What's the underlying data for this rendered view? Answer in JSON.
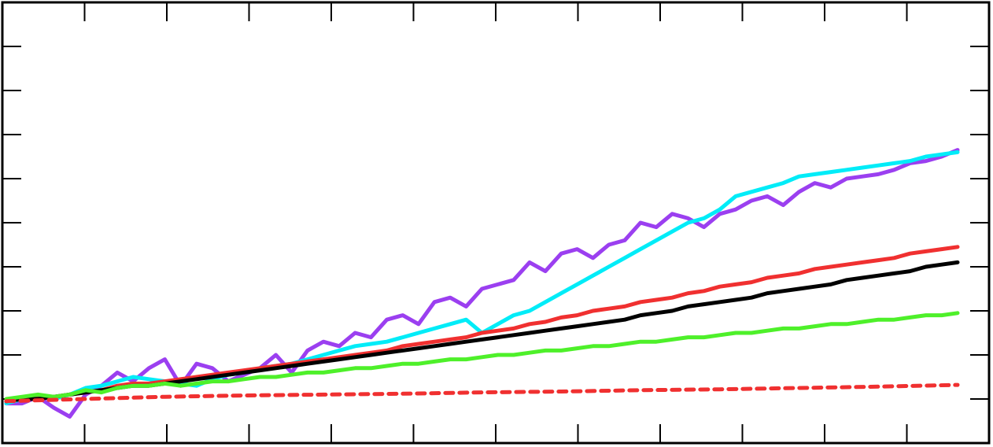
{
  "chart_data": {
    "type": "line",
    "title": "",
    "xlabel": "",
    "ylabel": "",
    "xlim": [
      0,
      60
    ],
    "ylim": [
      -1,
      9
    ],
    "grid": false,
    "x_ticks": [
      0,
      5,
      10,
      15,
      20,
      25,
      30,
      35,
      40,
      45,
      50,
      55,
      60
    ],
    "y_ticks": [
      0,
      1,
      2,
      3,
      4,
      5,
      6,
      7,
      8,
      9
    ],
    "series": [
      {
        "color": "#9b3ff0",
        "dashed": false,
        "values": [
          [
            0,
            -0.1
          ],
          [
            1,
            -0.1
          ],
          [
            2,
            0.05
          ],
          [
            3,
            -0.2
          ],
          [
            4,
            -0.4
          ],
          [
            5,
            0.1
          ],
          [
            6,
            0.3
          ],
          [
            7,
            0.6
          ],
          [
            8,
            0.4
          ],
          [
            9,
            0.7
          ],
          [
            10,
            0.9
          ],
          [
            11,
            0.3
          ],
          [
            12,
            0.8
          ],
          [
            13,
            0.7
          ],
          [
            14,
            0.4
          ],
          [
            15,
            0.55
          ],
          [
            16,
            0.7
          ],
          [
            17,
            1.0
          ],
          [
            18,
            0.6
          ],
          [
            19,
            1.1
          ],
          [
            20,
            1.3
          ],
          [
            21,
            1.2
          ],
          [
            22,
            1.5
          ],
          [
            23,
            1.4
          ],
          [
            24,
            1.8
          ],
          [
            25,
            1.9
          ],
          [
            26,
            1.7
          ],
          [
            27,
            2.2
          ],
          [
            28,
            2.3
          ],
          [
            29,
            2.1
          ],
          [
            30,
            2.5
          ],
          [
            31,
            2.6
          ],
          [
            32,
            2.7
          ],
          [
            33,
            3.1
          ],
          [
            34,
            2.9
          ],
          [
            35,
            3.3
          ],
          [
            36,
            3.4
          ],
          [
            37,
            3.2
          ],
          [
            38,
            3.5
          ],
          [
            39,
            3.6
          ],
          [
            40,
            4.0
          ],
          [
            41,
            3.9
          ],
          [
            42,
            4.2
          ],
          [
            43,
            4.1
          ],
          [
            44,
            3.9
          ],
          [
            45,
            4.2
          ],
          [
            46,
            4.3
          ],
          [
            47,
            4.5
          ],
          [
            48,
            4.6
          ],
          [
            49,
            4.4
          ],
          [
            50,
            4.7
          ],
          [
            51,
            4.9
          ],
          [
            52,
            4.8
          ],
          [
            53,
            5.0
          ],
          [
            54,
            5.05
          ],
          [
            55,
            5.1
          ],
          [
            56,
            5.2
          ],
          [
            57,
            5.35
          ],
          [
            58,
            5.4
          ],
          [
            59,
            5.5
          ],
          [
            60,
            5.65
          ]
        ]
      },
      {
        "color": "#00ecf8",
        "dashed": false,
        "values": [
          [
            0,
            -0.1
          ],
          [
            1,
            0.0
          ],
          [
            2,
            0.05
          ],
          [
            3,
            0.0
          ],
          [
            4,
            0.1
          ],
          [
            5,
            0.25
          ],
          [
            6,
            0.3
          ],
          [
            7,
            0.4
          ],
          [
            8,
            0.5
          ],
          [
            9,
            0.45
          ],
          [
            10,
            0.4
          ],
          [
            11,
            0.35
          ],
          [
            12,
            0.3
          ],
          [
            13,
            0.45
          ],
          [
            14,
            0.55
          ],
          [
            15,
            0.6
          ],
          [
            16,
            0.7
          ],
          [
            17,
            0.75
          ],
          [
            18,
            0.8
          ],
          [
            19,
            0.9
          ],
          [
            20,
            1.0
          ],
          [
            21,
            1.1
          ],
          [
            22,
            1.2
          ],
          [
            23,
            1.25
          ],
          [
            24,
            1.3
          ],
          [
            25,
            1.4
          ],
          [
            26,
            1.5
          ],
          [
            27,
            1.6
          ],
          [
            28,
            1.7
          ],
          [
            29,
            1.8
          ],
          [
            30,
            1.5
          ],
          [
            31,
            1.7
          ],
          [
            32,
            1.9
          ],
          [
            33,
            2.0
          ],
          [
            34,
            2.2
          ],
          [
            35,
            2.4
          ],
          [
            36,
            2.6
          ],
          [
            37,
            2.8
          ],
          [
            38,
            3.0
          ],
          [
            39,
            3.2
          ],
          [
            40,
            3.4
          ],
          [
            41,
            3.6
          ],
          [
            42,
            3.8
          ],
          [
            43,
            4.0
          ],
          [
            44,
            4.1
          ],
          [
            45,
            4.3
          ],
          [
            46,
            4.6
          ],
          [
            47,
            4.7
          ],
          [
            48,
            4.8
          ],
          [
            49,
            4.9
          ],
          [
            50,
            5.05
          ],
          [
            51,
            5.1
          ],
          [
            52,
            5.15
          ],
          [
            53,
            5.2
          ],
          [
            54,
            5.25
          ],
          [
            55,
            5.3
          ],
          [
            56,
            5.35
          ],
          [
            57,
            5.4
          ],
          [
            58,
            5.5
          ],
          [
            59,
            5.55
          ],
          [
            60,
            5.6
          ]
        ]
      },
      {
        "color": "#f03030",
        "dashed": false,
        "values": [
          [
            0,
            -0.05
          ],
          [
            1,
            0.0
          ],
          [
            2,
            0.05
          ],
          [
            3,
            0.05
          ],
          [
            4,
            0.1
          ],
          [
            5,
            0.15
          ],
          [
            6,
            0.2
          ],
          [
            7,
            0.3
          ],
          [
            8,
            0.35
          ],
          [
            9,
            0.35
          ],
          [
            10,
            0.4
          ],
          [
            11,
            0.45
          ],
          [
            12,
            0.5
          ],
          [
            13,
            0.55
          ],
          [
            14,
            0.6
          ],
          [
            15,
            0.65
          ],
          [
            16,
            0.7
          ],
          [
            17,
            0.75
          ],
          [
            18,
            0.8
          ],
          [
            19,
            0.85
          ],
          [
            20,
            0.9
          ],
          [
            21,
            0.95
          ],
          [
            22,
            1.0
          ],
          [
            23,
            1.05
          ],
          [
            24,
            1.1
          ],
          [
            25,
            1.2
          ],
          [
            26,
            1.25
          ],
          [
            27,
            1.3
          ],
          [
            28,
            1.35
          ],
          [
            29,
            1.4
          ],
          [
            30,
            1.5
          ],
          [
            31,
            1.55
          ],
          [
            32,
            1.6
          ],
          [
            33,
            1.7
          ],
          [
            34,
            1.75
          ],
          [
            35,
            1.85
          ],
          [
            36,
            1.9
          ],
          [
            37,
            2.0
          ],
          [
            38,
            2.05
          ],
          [
            39,
            2.1
          ],
          [
            40,
            2.2
          ],
          [
            41,
            2.25
          ],
          [
            42,
            2.3
          ],
          [
            43,
            2.4
          ],
          [
            44,
            2.45
          ],
          [
            45,
            2.55
          ],
          [
            46,
            2.6
          ],
          [
            47,
            2.65
          ],
          [
            48,
            2.75
          ],
          [
            49,
            2.8
          ],
          [
            50,
            2.85
          ],
          [
            51,
            2.95
          ],
          [
            52,
            3.0
          ],
          [
            53,
            3.05
          ],
          [
            54,
            3.1
          ],
          [
            55,
            3.15
          ],
          [
            56,
            3.2
          ],
          [
            57,
            3.3
          ],
          [
            58,
            3.35
          ],
          [
            59,
            3.4
          ],
          [
            60,
            3.45
          ]
        ]
      },
      {
        "color": "#000000",
        "dashed": false,
        "values": [
          [
            0,
            -0.05
          ],
          [
            1,
            0.0
          ],
          [
            2,
            0.0
          ],
          [
            3,
            0.05
          ],
          [
            4,
            0.1
          ],
          [
            5,
            0.15
          ],
          [
            6,
            0.2
          ],
          [
            7,
            0.25
          ],
          [
            8,
            0.3
          ],
          [
            9,
            0.3
          ],
          [
            10,
            0.35
          ],
          [
            11,
            0.4
          ],
          [
            12,
            0.45
          ],
          [
            13,
            0.5
          ],
          [
            14,
            0.55
          ],
          [
            15,
            0.6
          ],
          [
            16,
            0.65
          ],
          [
            17,
            0.7
          ],
          [
            18,
            0.75
          ],
          [
            19,
            0.8
          ],
          [
            20,
            0.85
          ],
          [
            21,
            0.9
          ],
          [
            22,
            0.95
          ],
          [
            23,
            1.0
          ],
          [
            24,
            1.05
          ],
          [
            25,
            1.1
          ],
          [
            26,
            1.15
          ],
          [
            27,
            1.2
          ],
          [
            28,
            1.25
          ],
          [
            29,
            1.3
          ],
          [
            30,
            1.35
          ],
          [
            31,
            1.4
          ],
          [
            32,
            1.45
          ],
          [
            33,
            1.5
          ],
          [
            34,
            1.55
          ],
          [
            35,
            1.6
          ],
          [
            36,
            1.65
          ],
          [
            37,
            1.7
          ],
          [
            38,
            1.75
          ],
          [
            39,
            1.8
          ],
          [
            40,
            1.9
          ],
          [
            41,
            1.95
          ],
          [
            42,
            2.0
          ],
          [
            43,
            2.1
          ],
          [
            44,
            2.15
          ],
          [
            45,
            2.2
          ],
          [
            46,
            2.25
          ],
          [
            47,
            2.3
          ],
          [
            48,
            2.4
          ],
          [
            49,
            2.45
          ],
          [
            50,
            2.5
          ],
          [
            51,
            2.55
          ],
          [
            52,
            2.6
          ],
          [
            53,
            2.7
          ],
          [
            54,
            2.75
          ],
          [
            55,
            2.8
          ],
          [
            56,
            2.85
          ],
          [
            57,
            2.9
          ],
          [
            58,
            3.0
          ],
          [
            59,
            3.05
          ],
          [
            60,
            3.1
          ]
        ]
      },
      {
        "color": "#4ef02a",
        "dashed": false,
        "values": [
          [
            0,
            0.0
          ],
          [
            1,
            0.05
          ],
          [
            2,
            0.1
          ],
          [
            3,
            0.05
          ],
          [
            4,
            0.1
          ],
          [
            5,
            0.2
          ],
          [
            6,
            0.15
          ],
          [
            7,
            0.25
          ],
          [
            8,
            0.3
          ],
          [
            9,
            0.3
          ],
          [
            10,
            0.35
          ],
          [
            11,
            0.3
          ],
          [
            12,
            0.35
          ],
          [
            13,
            0.4
          ],
          [
            14,
            0.4
          ],
          [
            15,
            0.45
          ],
          [
            16,
            0.5
          ],
          [
            17,
            0.5
          ],
          [
            18,
            0.55
          ],
          [
            19,
            0.6
          ],
          [
            20,
            0.6
          ],
          [
            21,
            0.65
          ],
          [
            22,
            0.7
          ],
          [
            23,
            0.7
          ],
          [
            24,
            0.75
          ],
          [
            25,
            0.8
          ],
          [
            26,
            0.8
          ],
          [
            27,
            0.85
          ],
          [
            28,
            0.9
          ],
          [
            29,
            0.9
          ],
          [
            30,
            0.95
          ],
          [
            31,
            1.0
          ],
          [
            32,
            1.0
          ],
          [
            33,
            1.05
          ],
          [
            34,
            1.1
          ],
          [
            35,
            1.1
          ],
          [
            36,
            1.15
          ],
          [
            37,
            1.2
          ],
          [
            38,
            1.2
          ],
          [
            39,
            1.25
          ],
          [
            40,
            1.3
          ],
          [
            41,
            1.3
          ],
          [
            42,
            1.35
          ],
          [
            43,
            1.4
          ],
          [
            44,
            1.4
          ],
          [
            45,
            1.45
          ],
          [
            46,
            1.5
          ],
          [
            47,
            1.5
          ],
          [
            48,
            1.55
          ],
          [
            49,
            1.6
          ],
          [
            50,
            1.6
          ],
          [
            51,
            1.65
          ],
          [
            52,
            1.7
          ],
          [
            53,
            1.7
          ],
          [
            54,
            1.75
          ],
          [
            55,
            1.8
          ],
          [
            56,
            1.8
          ],
          [
            57,
            1.85
          ],
          [
            58,
            1.9
          ],
          [
            59,
            1.9
          ],
          [
            60,
            1.95
          ]
        ]
      },
      {
        "color": "#f03030",
        "dashed": true,
        "values": [
          [
            0,
            -0.05
          ],
          [
            5,
            0.0
          ],
          [
            10,
            0.05
          ],
          [
            15,
            0.08
          ],
          [
            20,
            0.1
          ],
          [
            25,
            0.12
          ],
          [
            30,
            0.15
          ],
          [
            35,
            0.17
          ],
          [
            40,
            0.2
          ],
          [
            45,
            0.22
          ],
          [
            50,
            0.25
          ],
          [
            55,
            0.28
          ],
          [
            60,
            0.32
          ]
        ]
      }
    ]
  }
}
